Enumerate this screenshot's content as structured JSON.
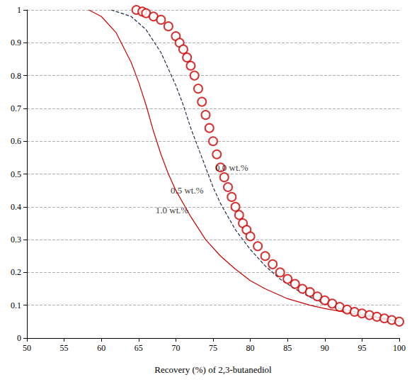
{
  "chart_data": {
    "type": "line",
    "xlabel": "Recovery (%) of 2,3-butanediol",
    "xlim": [
      50,
      100
    ],
    "xticks": [
      50,
      55,
      60,
      65,
      70,
      75,
      80,
      85,
      90,
      95,
      100
    ],
    "ylim": [
      0,
      1
    ],
    "yticks": [
      0,
      0.1,
      0.2,
      0.3,
      0.4,
      0.5,
      0.6,
      0.7,
      0.8,
      0.9,
      1
    ],
    "grid": true,
    "series": [
      {
        "name": "0.0 wt.%",
        "type": "scatter",
        "marker": "open_circle",
        "color": "#cc0000",
        "x": [
          64.7,
          65.5,
          66,
          67,
          68,
          69,
          70,
          70.5,
          71,
          71.5,
          72,
          72.5,
          73,
          73.5,
          74,
          74.5,
          75,
          75.5,
          76,
          76.5,
          77,
          77.5,
          78,
          78.5,
          79,
          79.5,
          80,
          81,
          82,
          83,
          84,
          85,
          86,
          87,
          88,
          89,
          90,
          91,
          92,
          93,
          94,
          95,
          96,
          97,
          98,
          99,
          100
        ],
        "values": [
          1.0,
          0.995,
          0.99,
          0.98,
          0.97,
          0.95,
          0.92,
          0.9,
          0.88,
          0.855,
          0.83,
          0.8,
          0.76,
          0.72,
          0.68,
          0.64,
          0.6,
          0.56,
          0.52,
          0.49,
          0.46,
          0.43,
          0.4,
          0.375,
          0.35,
          0.33,
          0.31,
          0.28,
          0.25,
          0.225,
          0.2,
          0.18,
          0.165,
          0.15,
          0.14,
          0.127,
          0.115,
          0.105,
          0.095,
          0.087,
          0.08,
          0.075,
          0.07,
          0.065,
          0.06,
          0.055,
          0.05
        ]
      },
      {
        "name": "0.5 wt.%",
        "type": "line",
        "line_style": "dashed",
        "color": "#1f2f4f",
        "x": [
          61.3,
          62,
          64,
          66,
          68,
          70,
          71,
          72,
          73,
          74,
          75,
          76,
          78,
          80,
          82,
          84,
          86,
          88,
          90,
          92,
          95,
          98,
          100
        ],
        "values": [
          1.0,
          0.995,
          0.98,
          0.94,
          0.87,
          0.77,
          0.71,
          0.64,
          0.58,
          0.52,
          0.46,
          0.41,
          0.33,
          0.27,
          0.22,
          0.18,
          0.15,
          0.125,
          0.105,
          0.09,
          0.075,
          0.06,
          0.055
        ]
      },
      {
        "name": "1.0 wt.%",
        "type": "line",
        "line_style": "solid",
        "color": "#cc0000",
        "x": [
          58.3,
          60,
          62,
          64,
          65,
          66,
          67,
          68,
          69,
          70,
          72,
          74,
          76,
          78,
          80,
          82,
          85,
          88,
          90,
          95,
          100
        ],
        "values": [
          1.0,
          0.98,
          0.93,
          0.84,
          0.78,
          0.71,
          0.63,
          0.56,
          0.5,
          0.45,
          0.37,
          0.3,
          0.25,
          0.21,
          0.175,
          0.15,
          0.12,
          0.1,
          0.09,
          0.07,
          0.05
        ]
      }
    ],
    "annotations": [
      {
        "text": "0.0 wt.%",
        "x": 77.5,
        "y": 0.52
      },
      {
        "text": "0.5 wt.%",
        "x": 71.5,
        "y": 0.45
      },
      {
        "text": "1.0 wt.%",
        "x": 69.5,
        "y": 0.39
      }
    ]
  }
}
